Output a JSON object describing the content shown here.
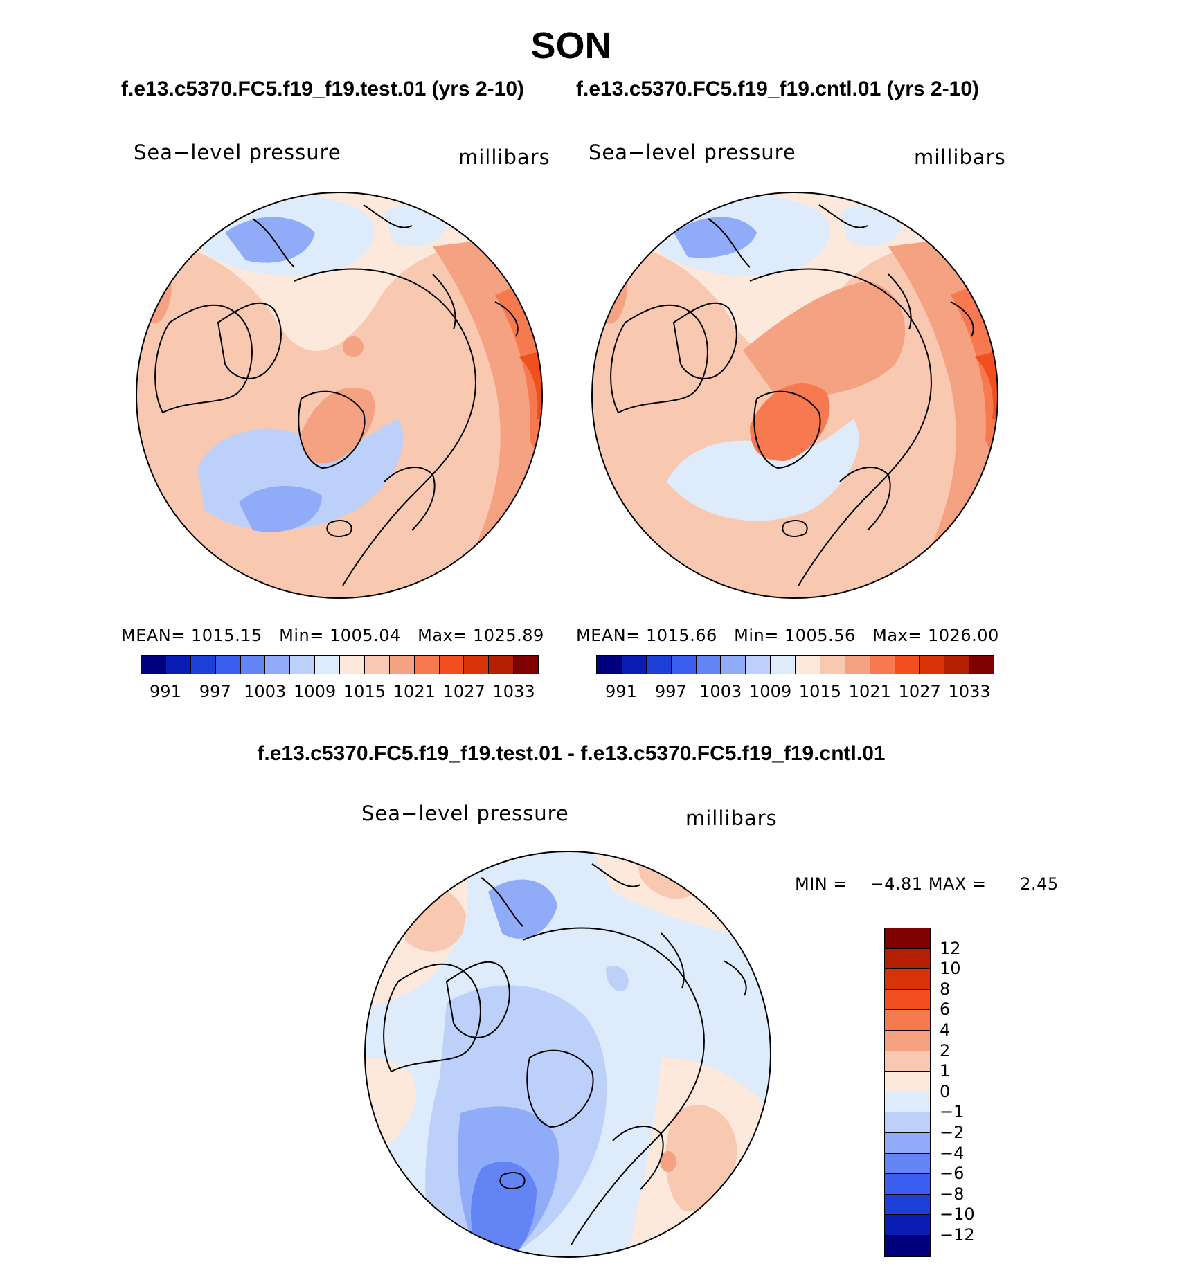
{
  "title": "SON",
  "panels": {
    "test": {
      "case": "f.e13.c5370.FC5.f19_f19.test.01 (yrs 2-10)",
      "variable": "Sea−level pressure",
      "units": "millibars",
      "stats": {
        "mean_label": "MEAN=",
        "mean": "1015.15",
        "min_label": "Min=",
        "min": "1005.04",
        "max_label": "Max=",
        "max": "1025.89"
      }
    },
    "cntl": {
      "case": "f.e13.c5370.FC5.f19_f19.cntl.01 (yrs 2-10)",
      "variable": "Sea−level pressure",
      "units": "millibars",
      "stats": {
        "mean_label": "MEAN=",
        "mean": "1015.66",
        "min_label": "Min=",
        "min": "1005.56",
        "max_label": "Max=",
        "max": "1026.00"
      }
    },
    "diff": {
      "case": "f.e13.c5370.FC5.f19_f19.test.01 - f.e13.c5370.FC5.f19_f19.cntl.01",
      "variable": "Sea−level pressure",
      "units": "millibars",
      "stats": {
        "min_label": "MIN =",
        "min": "−4.81",
        "max_label": "MAX =",
        "max": "2.45"
      }
    }
  },
  "abs_colorbar": {
    "tick_labels": [
      "991",
      "997",
      "1003",
      "1009",
      "1015",
      "1021",
      "1027",
      "1033"
    ],
    "colors": [
      "#00007f",
      "#0a1cb4",
      "#1f3fd9",
      "#3b5ef0",
      "#6384f5",
      "#90abf7",
      "#bcd0fa",
      "#deebfb",
      "#fde9dc",
      "#f9c8b0",
      "#f5a283",
      "#f6794f",
      "#f24f20",
      "#d63308",
      "#b31f00",
      "#7f0000"
    ]
  },
  "diff_colorbar": {
    "tick_labels": [
      "12",
      "10",
      "8",
      "6",
      "4",
      "2",
      "1",
      "0",
      "−1",
      "−2",
      "−4",
      "−6",
      "−8",
      "−10",
      "−12"
    ],
    "colors": [
      "#7f0000",
      "#b31f00",
      "#d63308",
      "#f24f20",
      "#f6794f",
      "#f5a283",
      "#f9c8b0",
      "#fde9dc",
      "#deebfb",
      "#bcd0fa",
      "#90abf7",
      "#6384f5",
      "#3b5ef0",
      "#1f3fd9",
      "#0a1cb4",
      "#00007f"
    ]
  },
  "map_fields": {
    "background": "#f9c8b0",
    "outline_color": "#000000"
  }
}
